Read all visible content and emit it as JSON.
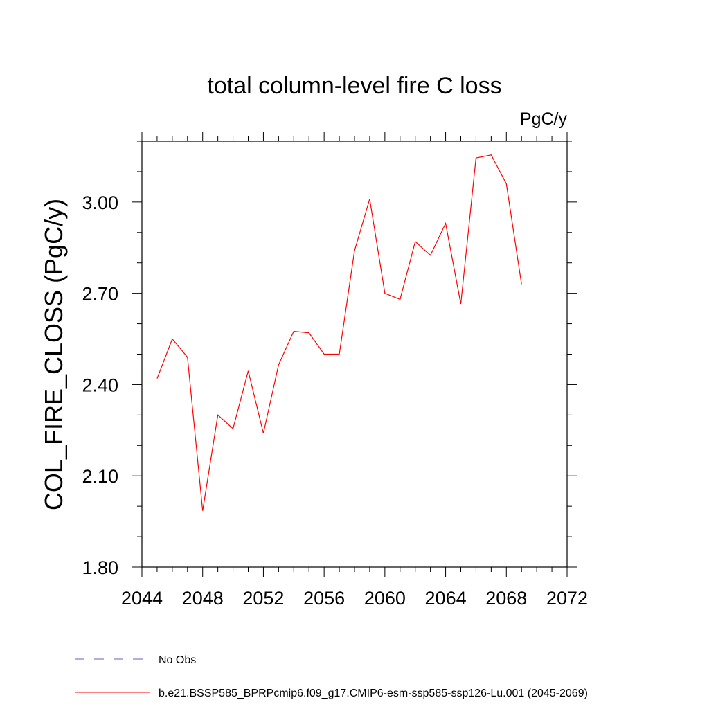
{
  "chart_data": {
    "type": "line",
    "title": "total column-level fire C loss",
    "units": "PgC/y",
    "xlabel": "",
    "ylabel": "COL_FIRE_CLOSS  (PgC/y)",
    "xlim": [
      2044,
      2072
    ],
    "ylim": [
      1.8,
      3.2
    ],
    "x_ticks": [
      2044,
      2048,
      2052,
      2056,
      2060,
      2064,
      2068,
      2072
    ],
    "y_ticks": [
      "1.80",
      "2.10",
      "2.40",
      "2.70",
      "3.00"
    ],
    "grid": false,
    "legend_position": "bottom",
    "colors": {
      "series": "#ff0000",
      "obs": "#6a5acd",
      "axis": "#000000"
    },
    "series": [
      {
        "name": "b.e21.BSSP585_BPRPcmip6.f09_g17.CMIP6-esm-ssp585-ssp126-Lu.001 (2045-2069)",
        "color": "#ff0000",
        "x": [
          2045,
          2046,
          2047,
          2048,
          2049,
          2050,
          2051,
          2052,
          2053,
          2054,
          2055,
          2056,
          2057,
          2058,
          2059,
          2060,
          2061,
          2062,
          2063,
          2064,
          2065,
          2066,
          2067,
          2068,
          2069
        ],
        "values": [
          2.42,
          2.55,
          2.49,
          1.985,
          2.3,
          2.255,
          2.445,
          2.24,
          2.465,
          2.575,
          2.57,
          2.5,
          2.5,
          2.84,
          3.01,
          2.7,
          2.68,
          2.87,
          2.825,
          2.93,
          2.665,
          3.145,
          3.155,
          3.06,
          2.73
        ]
      }
    ],
    "legend": [
      {
        "label": "No Obs",
        "style": "dashed",
        "color": "#6a5acd"
      },
      {
        "label": "b.e21.BSSP585_BPRPcmip6.f09_g17.CMIP6-esm-ssp585-ssp126-Lu.001 (2045-2069)",
        "style": "solid",
        "color": "#ff0000"
      }
    ]
  }
}
